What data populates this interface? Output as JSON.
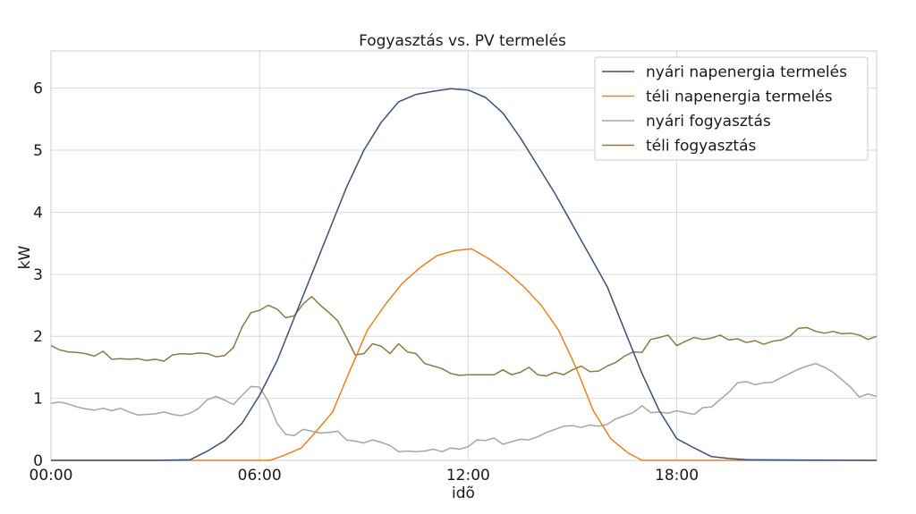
{
  "chart_data": {
    "type": "line",
    "title": "Fogyasztás vs. PV termelés",
    "xlabel": "idõ",
    "ylabel": "kW",
    "x_unit": "hours",
    "xlim": [
      0,
      23.75
    ],
    "ylim": [
      0,
      6.6
    ],
    "grid": true,
    "legend_position": "top-right",
    "xticks": [
      {
        "value": 0,
        "label": "00:00"
      },
      {
        "value": 6,
        "label": "06:00"
      },
      {
        "value": 12,
        "label": "12:00"
      },
      {
        "value": 18,
        "label": "18:00"
      }
    ],
    "yticks": [
      {
        "value": 0,
        "label": "0"
      },
      {
        "value": 1,
        "label": "1"
      },
      {
        "value": 2,
        "label": "2"
      },
      {
        "value": 3,
        "label": "3"
      },
      {
        "value": 4,
        "label": "4"
      },
      {
        "value": 5,
        "label": "5"
      },
      {
        "value": 6,
        "label": "6"
      }
    ],
    "series": [
      {
        "name": "nyári napenergia termelés",
        "color": "#3b4f7f",
        "points": [
          [
            0,
            0
          ],
          [
            3,
            0
          ],
          [
            4,
            0.01
          ],
          [
            4.5,
            0.15
          ],
          [
            5,
            0.32
          ],
          [
            5.5,
            0.6
          ],
          [
            6,
            1.05
          ],
          [
            6.5,
            1.6
          ],
          [
            7,
            2.3
          ],
          [
            7.5,
            3.0
          ],
          [
            8,
            3.7
          ],
          [
            8.5,
            4.4
          ],
          [
            9,
            5.0
          ],
          [
            9.5,
            5.45
          ],
          [
            10,
            5.78
          ],
          [
            10.5,
            5.9
          ],
          [
            11,
            5.95
          ],
          [
            11.5,
            5.99
          ],
          [
            12,
            5.97
          ],
          [
            12.5,
            5.85
          ],
          [
            13,
            5.6
          ],
          [
            13.5,
            5.2
          ],
          [
            14,
            4.75
          ],
          [
            14.5,
            4.3
          ],
          [
            15,
            3.8
          ],
          [
            15.5,
            3.3
          ],
          [
            16,
            2.8
          ],
          [
            16.5,
            2.1
          ],
          [
            17,
            1.4
          ],
          [
            17.5,
            0.8
          ],
          [
            18,
            0.35
          ],
          [
            18.5,
            0.2
          ],
          [
            19,
            0.06
          ],
          [
            19.5,
            0.03
          ],
          [
            20,
            0.01
          ],
          [
            23.75,
            0
          ]
        ]
      },
      {
        "name": "téli napenergia termelés",
        "color": "#e8821f",
        "points": [
          [
            0,
            0
          ],
          [
            6.3,
            0
          ],
          [
            6.7,
            0.08
          ],
          [
            7.2,
            0.2
          ],
          [
            7.6,
            0.45
          ],
          [
            8.1,
            0.78
          ],
          [
            8.6,
            1.45
          ],
          [
            9.1,
            2.1
          ],
          [
            9.6,
            2.5
          ],
          [
            10.1,
            2.85
          ],
          [
            10.6,
            3.1
          ],
          [
            11.1,
            3.3
          ],
          [
            11.6,
            3.38
          ],
          [
            12.1,
            3.41
          ],
          [
            12.6,
            3.25
          ],
          [
            13.1,
            3.05
          ],
          [
            13.6,
            2.8
          ],
          [
            14.1,
            2.5
          ],
          [
            14.6,
            2.1
          ],
          [
            15.1,
            1.5
          ],
          [
            15.6,
            0.8
          ],
          [
            16.1,
            0.35
          ],
          [
            16.6,
            0.12
          ],
          [
            17,
            0
          ],
          [
            23.75,
            0
          ]
        ]
      },
      {
        "name": "nyári fogyasztás",
        "color": "#a6a895",
        "points": [
          [
            0,
            0.92
          ],
          [
            0.25,
            0.94
          ],
          [
            0.5,
            0.91
          ],
          [
            0.75,
            0.86
          ],
          [
            1,
            0.83
          ],
          [
            1.25,
            0.81
          ],
          [
            1.5,
            0.84
          ],
          [
            1.75,
            0.8
          ],
          [
            2,
            0.84
          ],
          [
            2.25,
            0.78
          ],
          [
            2.5,
            0.73
          ],
          [
            2.75,
            0.74
          ],
          [
            3,
            0.75
          ],
          [
            3.25,
            0.78
          ],
          [
            3.5,
            0.74
          ],
          [
            3.75,
            0.72
          ],
          [
            4,
            0.76
          ],
          [
            4.25,
            0.84
          ],
          [
            4.5,
            0.98
          ],
          [
            4.75,
            1.03
          ],
          [
            5,
            0.97
          ],
          [
            5.25,
            0.9
          ],
          [
            5.5,
            1.05
          ],
          [
            5.75,
            1.19
          ],
          [
            6,
            1.18
          ],
          [
            6.25,
            0.95
          ],
          [
            6.5,
            0.6
          ],
          [
            6.75,
            0.42
          ],
          [
            7,
            0.4
          ],
          [
            7.25,
            0.5
          ],
          [
            7.5,
            0.47
          ],
          [
            7.75,
            0.44
          ],
          [
            8,
            0.45
          ],
          [
            8.25,
            0.47
          ],
          [
            8.5,
            0.33
          ],
          [
            8.75,
            0.31
          ],
          [
            9,
            0.28
          ],
          [
            9.25,
            0.33
          ],
          [
            9.5,
            0.29
          ],
          [
            9.75,
            0.24
          ],
          [
            10,
            0.14
          ],
          [
            10.25,
            0.15
          ],
          [
            10.5,
            0.14
          ],
          [
            10.75,
            0.15
          ],
          [
            11,
            0.18
          ],
          [
            11.25,
            0.14
          ],
          [
            11.5,
            0.2
          ],
          [
            11.75,
            0.18
          ],
          [
            12,
            0.22
          ],
          [
            12.25,
            0.33
          ],
          [
            12.5,
            0.32
          ],
          [
            12.75,
            0.36
          ],
          [
            13,
            0.26
          ],
          [
            13.25,
            0.3
          ],
          [
            13.5,
            0.34
          ],
          [
            13.75,
            0.33
          ],
          [
            14,
            0.38
          ],
          [
            14.25,
            0.45
          ],
          [
            14.5,
            0.5
          ],
          [
            14.75,
            0.55
          ],
          [
            15,
            0.56
          ],
          [
            15.25,
            0.53
          ],
          [
            15.5,
            0.57
          ],
          [
            15.75,
            0.55
          ],
          [
            16,
            0.58
          ],
          [
            16.25,
            0.67
          ],
          [
            16.5,
            0.72
          ],
          [
            16.75,
            0.77
          ],
          [
            17,
            0.88
          ],
          [
            17.25,
            0.77
          ],
          [
            17.5,
            0.78
          ],
          [
            17.75,
            0.76
          ],
          [
            18,
            0.8
          ],
          [
            18.25,
            0.77
          ],
          [
            18.5,
            0.74
          ],
          [
            18.75,
            0.85
          ],
          [
            19,
            0.86
          ],
          [
            19.25,
            0.98
          ],
          [
            19.5,
            1.1
          ],
          [
            19.75,
            1.25
          ],
          [
            20,
            1.27
          ],
          [
            20.25,
            1.22
          ],
          [
            20.5,
            1.25
          ],
          [
            20.75,
            1.26
          ],
          [
            21,
            1.33
          ],
          [
            21.25,
            1.4
          ],
          [
            21.5,
            1.47
          ],
          [
            21.75,
            1.52
          ],
          [
            22,
            1.56
          ],
          [
            22.25,
            1.5
          ],
          [
            22.5,
            1.42
          ],
          [
            22.75,
            1.3
          ],
          [
            23,
            1.18
          ],
          [
            23.25,
            1.02
          ],
          [
            23.5,
            1.07
          ],
          [
            23.75,
            1.03
          ]
        ]
      },
      {
        "name": "téli fogyasztás",
        "color": "#8b7a43",
        "points": [
          [
            0,
            1.85
          ],
          [
            0.25,
            1.78
          ],
          [
            0.5,
            1.75
          ],
          [
            0.75,
            1.74
          ],
          [
            1,
            1.72
          ],
          [
            1.25,
            1.68
          ],
          [
            1.5,
            1.76
          ],
          [
            1.75,
            1.63
          ],
          [
            2,
            1.64
          ],
          [
            2.25,
            1.63
          ],
          [
            2.5,
            1.64
          ],
          [
            2.75,
            1.61
          ],
          [
            3,
            1.63
          ],
          [
            3.25,
            1.6
          ],
          [
            3.5,
            1.7
          ],
          [
            3.75,
            1.72
          ],
          [
            4,
            1.71
          ],
          [
            4.25,
            1.73
          ],
          [
            4.5,
            1.72
          ],
          [
            4.75,
            1.67
          ],
          [
            5,
            1.69
          ],
          [
            5.25,
            1.82
          ],
          [
            5.5,
            2.15
          ],
          [
            5.75,
            2.38
          ],
          [
            6,
            2.42
          ],
          [
            6.25,
            2.5
          ],
          [
            6.5,
            2.44
          ],
          [
            6.75,
            2.3
          ],
          [
            7,
            2.33
          ],
          [
            7.25,
            2.52
          ],
          [
            7.5,
            2.64
          ],
          [
            7.75,
            2.5
          ],
          [
            8,
            2.38
          ],
          [
            8.25,
            2.25
          ],
          [
            8.5,
            1.98
          ],
          [
            8.75,
            1.7
          ],
          [
            9,
            1.72
          ],
          [
            9.25,
            1.88
          ],
          [
            9.5,
            1.84
          ],
          [
            9.75,
            1.72
          ],
          [
            10,
            1.88
          ],
          [
            10.25,
            1.75
          ],
          [
            10.5,
            1.72
          ],
          [
            10.75,
            1.56
          ],
          [
            11,
            1.52
          ],
          [
            11.25,
            1.48
          ],
          [
            11.5,
            1.4
          ],
          [
            11.75,
            1.37
          ],
          [
            12,
            1.38
          ],
          [
            12.25,
            1.38
          ],
          [
            12.5,
            1.38
          ],
          [
            12.75,
            1.38
          ],
          [
            13,
            1.46
          ],
          [
            13.25,
            1.38
          ],
          [
            13.5,
            1.42
          ],
          [
            13.75,
            1.5
          ],
          [
            14,
            1.38
          ],
          [
            14.25,
            1.36
          ],
          [
            14.5,
            1.42
          ],
          [
            14.75,
            1.38
          ],
          [
            15,
            1.46
          ],
          [
            15.25,
            1.52
          ],
          [
            15.5,
            1.43
          ],
          [
            15.75,
            1.44
          ],
          [
            16,
            1.52
          ],
          [
            16.25,
            1.58
          ],
          [
            16.5,
            1.68
          ],
          [
            16.75,
            1.75
          ],
          [
            17,
            1.74
          ],
          [
            17.25,
            1.95
          ],
          [
            17.5,
            1.98
          ],
          [
            17.75,
            2.02
          ],
          [
            18,
            1.85
          ],
          [
            18.25,
            1.92
          ],
          [
            18.5,
            1.98
          ],
          [
            18.75,
            1.95
          ],
          [
            19,
            1.97
          ],
          [
            19.25,
            2.02
          ],
          [
            19.5,
            1.94
          ],
          [
            19.75,
            1.96
          ],
          [
            20,
            1.9
          ],
          [
            20.25,
            1.93
          ],
          [
            20.5,
            1.87
          ],
          [
            20.75,
            1.92
          ],
          [
            21,
            1.94
          ],
          [
            21.25,
            2.0
          ],
          [
            21.5,
            2.13
          ],
          [
            21.75,
            2.14
          ],
          [
            22,
            2.08
          ],
          [
            22.25,
            2.05
          ],
          [
            22.5,
            2.08
          ],
          [
            22.75,
            2.04
          ],
          [
            23,
            2.05
          ],
          [
            23.25,
            2.02
          ],
          [
            23.5,
            1.95
          ],
          [
            23.75,
            2.0
          ]
        ]
      }
    ]
  }
}
